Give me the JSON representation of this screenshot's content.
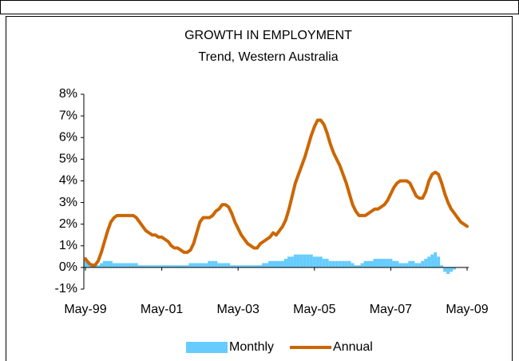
{
  "chart_data": {
    "type": "bar_line",
    "title": "GROWTH IN EMPLOYMENT",
    "subtitle": "Trend, Western Australia",
    "categories": [
      "May-99",
      null,
      null,
      null,
      null,
      null,
      null,
      null,
      null,
      null,
      null,
      null,
      null,
      null,
      null,
      null,
      null,
      null,
      null,
      null,
      null,
      null,
      null,
      null,
      "May-01",
      null,
      null,
      null,
      null,
      null,
      null,
      null,
      null,
      null,
      null,
      null,
      null,
      null,
      null,
      null,
      null,
      null,
      null,
      null,
      null,
      null,
      null,
      null,
      "May-03",
      null,
      null,
      null,
      null,
      null,
      null,
      null,
      null,
      null,
      null,
      null,
      null,
      null,
      null,
      null,
      null,
      null,
      null,
      null,
      null,
      null,
      null,
      null,
      "May-05",
      null,
      null,
      null,
      null,
      null,
      null,
      null,
      null,
      null,
      null,
      null,
      null,
      null,
      null,
      null,
      null,
      null,
      null,
      null,
      null,
      null,
      null,
      null,
      "May-07",
      null,
      null,
      null,
      null,
      null,
      null,
      null,
      null,
      null,
      null,
      null,
      null,
      null,
      null,
      null,
      null,
      null,
      null,
      null,
      null,
      null,
      null,
      null,
      "May-09"
    ],
    "series": [
      {
        "name": "Monthly",
        "kind": "bar",
        "color": "#66ccff",
        "values": [
          0.4,
          0.3,
          0.2,
          0.1,
          0.1,
          0.2,
          0.3,
          0.3,
          0.3,
          0.2,
          0.2,
          0.2,
          0.2,
          0.2,
          0.2,
          0.2,
          0.2,
          0.1,
          0.1,
          0.1,
          0.1,
          0.1,
          0.1,
          0.1,
          0.1,
          0.1,
          0.1,
          0.1,
          0.1,
          0.1,
          0.1,
          0.1,
          0.1,
          0.2,
          0.2,
          0.2,
          0.2,
          0.2,
          0.2,
          0.3,
          0.3,
          0.3,
          0.2,
          0.2,
          0.2,
          0.2,
          0.1,
          0.1,
          0.1,
          0.1,
          0.1,
          0.1,
          0.1,
          0.1,
          0.1,
          0.1,
          0.2,
          0.2,
          0.3,
          0.3,
          0.3,
          0.3,
          0.3,
          0.4,
          0.5,
          0.5,
          0.6,
          0.6,
          0.6,
          0.6,
          0.6,
          0.6,
          0.5,
          0.5,
          0.5,
          0.4,
          0.4,
          0.3,
          0.3,
          0.3,
          0.3,
          0.3,
          0.3,
          0.3,
          0.2,
          0.1,
          0.1,
          0.2,
          0.3,
          0.3,
          0.3,
          0.4,
          0.4,
          0.4,
          0.4,
          0.4,
          0.4,
          0.3,
          0.3,
          0.2,
          0.2,
          0.2,
          0.3,
          0.3,
          0.2,
          0.2,
          0.3,
          0.4,
          0.5,
          0.6,
          0.7,
          0.5,
          0.1,
          -0.2,
          -0.3,
          -0.2,
          -0.1,
          0.0,
          0.0,
          0.0,
          0.0
        ]
      },
      {
        "name": "Annual",
        "kind": "line",
        "color": "#cc6600",
        "values": [
          0.4,
          0.2,
          0.1,
          0.1,
          0.3,
          0.7,
          1.2,
          1.7,
          2.1,
          2.3,
          2.4,
          2.4,
          2.4,
          2.4,
          2.4,
          2.4,
          2.3,
          2.1,
          1.9,
          1.7,
          1.6,
          1.5,
          1.5,
          1.4,
          1.4,
          1.3,
          1.2,
          1.0,
          0.9,
          0.9,
          0.8,
          0.7,
          0.7,
          0.8,
          1.1,
          1.6,
          2.1,
          2.3,
          2.3,
          2.3,
          2.4,
          2.6,
          2.7,
          2.9,
          2.9,
          2.8,
          2.5,
          2.1,
          1.8,
          1.5,
          1.3,
          1.1,
          1.0,
          0.9,
          0.9,
          1.1,
          1.2,
          1.3,
          1.4,
          1.6,
          1.5,
          1.7,
          1.9,
          2.2,
          2.7,
          3.3,
          3.9,
          4.3,
          4.7,
          5.1,
          5.6,
          6.1,
          6.5,
          6.8,
          6.8,
          6.6,
          6.2,
          5.7,
          5.3,
          5.0,
          4.7,
          4.3,
          3.9,
          3.4,
          2.9,
          2.6,
          2.4,
          2.4,
          2.4,
          2.5,
          2.6,
          2.7,
          2.7,
          2.8,
          2.9,
          3.1,
          3.4,
          3.7,
          3.9,
          4.0,
          4.0,
          4.0,
          3.9,
          3.6,
          3.3,
          3.2,
          3.2,
          3.5,
          4.0,
          4.3,
          4.4,
          4.3,
          3.9,
          3.4,
          3.0,
          2.7,
          2.5,
          2.3,
          2.1,
          2.0,
          1.9
        ]
      }
    ],
    "ylim": [
      -1,
      8
    ],
    "yticks": [
      {
        "value": -1,
        "label": "-1%"
      },
      {
        "value": 0,
        "label": "0%"
      },
      {
        "value": 1,
        "label": "1%"
      },
      {
        "value": 2,
        "label": "2%"
      },
      {
        "value": 3,
        "label": "3%"
      },
      {
        "value": 4,
        "label": "4%"
      },
      {
        "value": 5,
        "label": "5%"
      },
      {
        "value": 6,
        "label": "6%"
      },
      {
        "value": 7,
        "label": "7%"
      },
      {
        "value": 8,
        "label": "8%"
      }
    ],
    "legend": "bottom"
  }
}
